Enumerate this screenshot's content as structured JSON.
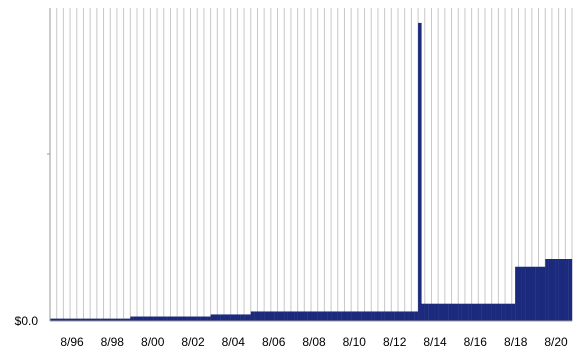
{
  "chart_data": {
    "type": "bar",
    "title": "",
    "xlabel": "",
    "ylabel": "",
    "y_tick_labels": [
      "$0.0"
    ],
    "x_tick_labels": [
      "8/96",
      "8/98",
      "8/00",
      "8/02",
      "8/04",
      "8/06",
      "8/08",
      "8/10",
      "8/12",
      "8/14",
      "8/16",
      "8/18",
      "8/20"
    ],
    "grid": "vertical",
    "bar_color": "#1b2a7c",
    "grid_color": "#c8c8c8",
    "series": [
      {
        "values": [
          0.8,
          0.8,
          0.8,
          0.8,
          0.8,
          0.8,
          0.8,
          0.8,
          0.8,
          0.8,
          0.8,
          0.8,
          0.8,
          0.8,
          0.8,
          0.8,
          0.8,
          0.8,
          0.8,
          0.8,
          0.8,
          0.8,
          0.8,
          0.8,
          1.5,
          1.5,
          1.5,
          1.5,
          1.5,
          1.5,
          1.5,
          1.5,
          1.5,
          1.5,
          1.5,
          1.5,
          1.5,
          1.5,
          1.5,
          1.5,
          1.5,
          1.5,
          1.5,
          1.5,
          1.5,
          1.5,
          1.5,
          1.5,
          2.2,
          2.2,
          2.2,
          2.2,
          2.2,
          2.2,
          2.2,
          2.2,
          2.2,
          2.2,
          2.2,
          2.2,
          3.2,
          3.2,
          3.2,
          3.2,
          3.2,
          3.2,
          3.2,
          3.2,
          3.2,
          3.2,
          3.2,
          3.2,
          3.2,
          3.2,
          3.2,
          3.2,
          3.2,
          3.2,
          3.2,
          3.2,
          3.2,
          3.2,
          3.2,
          3.2,
          3.2,
          3.2,
          3.2,
          3.2,
          3.2,
          3.2,
          3.2,
          3.2,
          3.2,
          3.2,
          3.2,
          3.2,
          3.2,
          3.2,
          3.2,
          3.2,
          3.2,
          3.2,
          3.2,
          3.2,
          3.2,
          3.2,
          3.2,
          3.2,
          3.2,
          3.2,
          100,
          5.8,
          5.8,
          5.8,
          5.8,
          5.8,
          5.8,
          5.8,
          5.8,
          5.8,
          5.8,
          5.8,
          5.8,
          5.8,
          5.8,
          5.8,
          5.8,
          5.8,
          5.8,
          5.8,
          5.8,
          5.8,
          5.8,
          5.8,
          5.8,
          5.8,
          5.8,
          5.8,
          5.8,
          18.2,
          18.2,
          18.2,
          18.2,
          18.2,
          18.2,
          18.2,
          18.2,
          18.2,
          20.8,
          20.8,
          20.8,
          20.8,
          20.8,
          20.8,
          20.8,
          20.8
        ]
      }
    ],
    "ylim": [
      0,
      105
    ]
  }
}
